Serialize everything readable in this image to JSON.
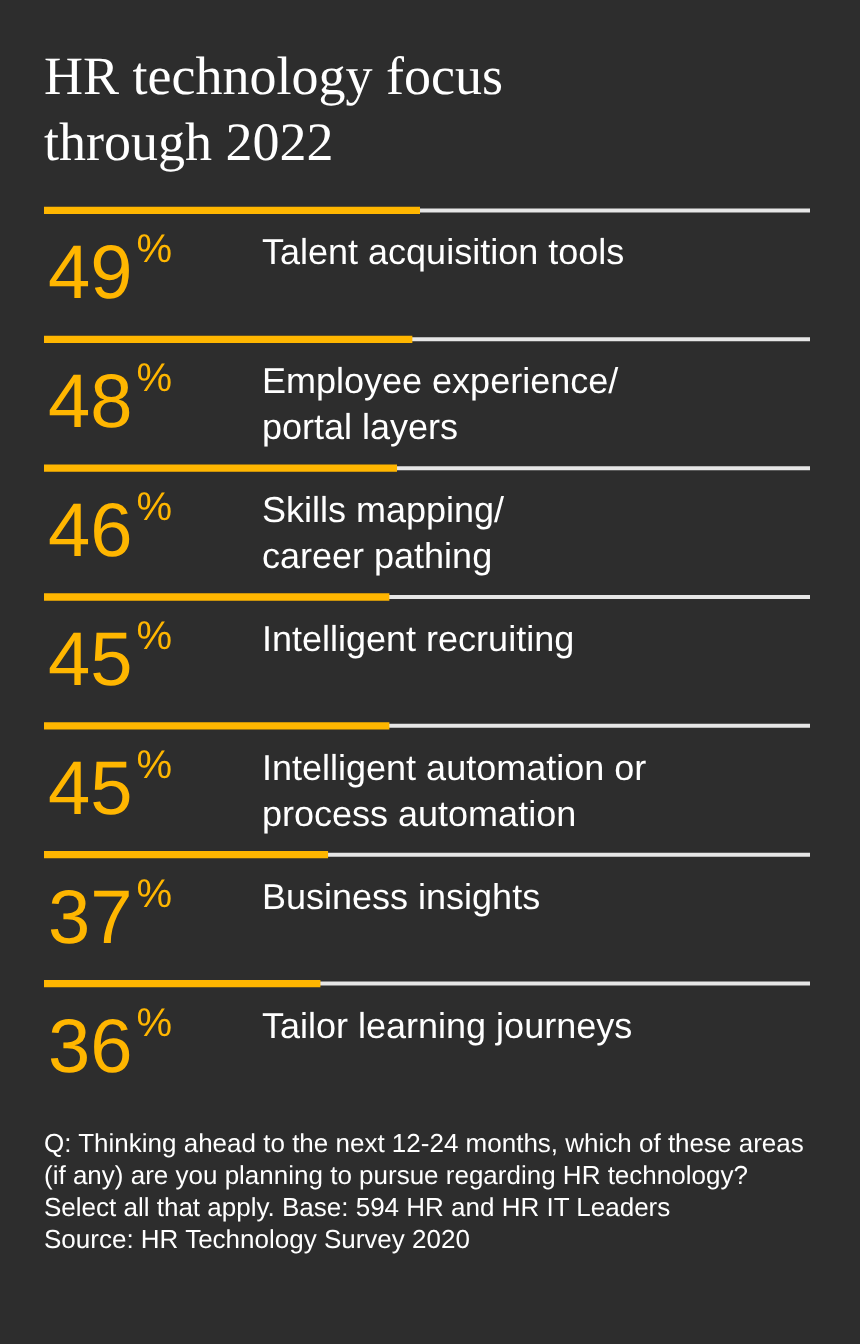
{
  "chart_data": {
    "type": "bar",
    "orientation": "horizontal",
    "title": "HR technology focus through 2022",
    "categories": [
      "Talent acquisition tools",
      "Employee experience/ portal layers",
      "Skills mapping/ career pathing",
      "Intelligent recruiting",
      "Intelligent automation or process automation",
      "Business insights",
      "Tailor learning journeys"
    ],
    "values": [
      49,
      48,
      46,
      45,
      45,
      37,
      36
    ],
    "value_labels": [
      "49%",
      "48%",
      "46%",
      "45%",
      "45%",
      "37%",
      "36%"
    ],
    "color": "#ffb600",
    "xlim": [
      0,
      100
    ],
    "annotations": [
      "Q: Thinking ahead to the next 12-24 months, which of these areas (if any) are you planning to pursue regarding HR technology? Select all that apply. Base: 594 HR and HR IT Leaders",
      "Source: HR Technology Survey 2020"
    ]
  }
}
